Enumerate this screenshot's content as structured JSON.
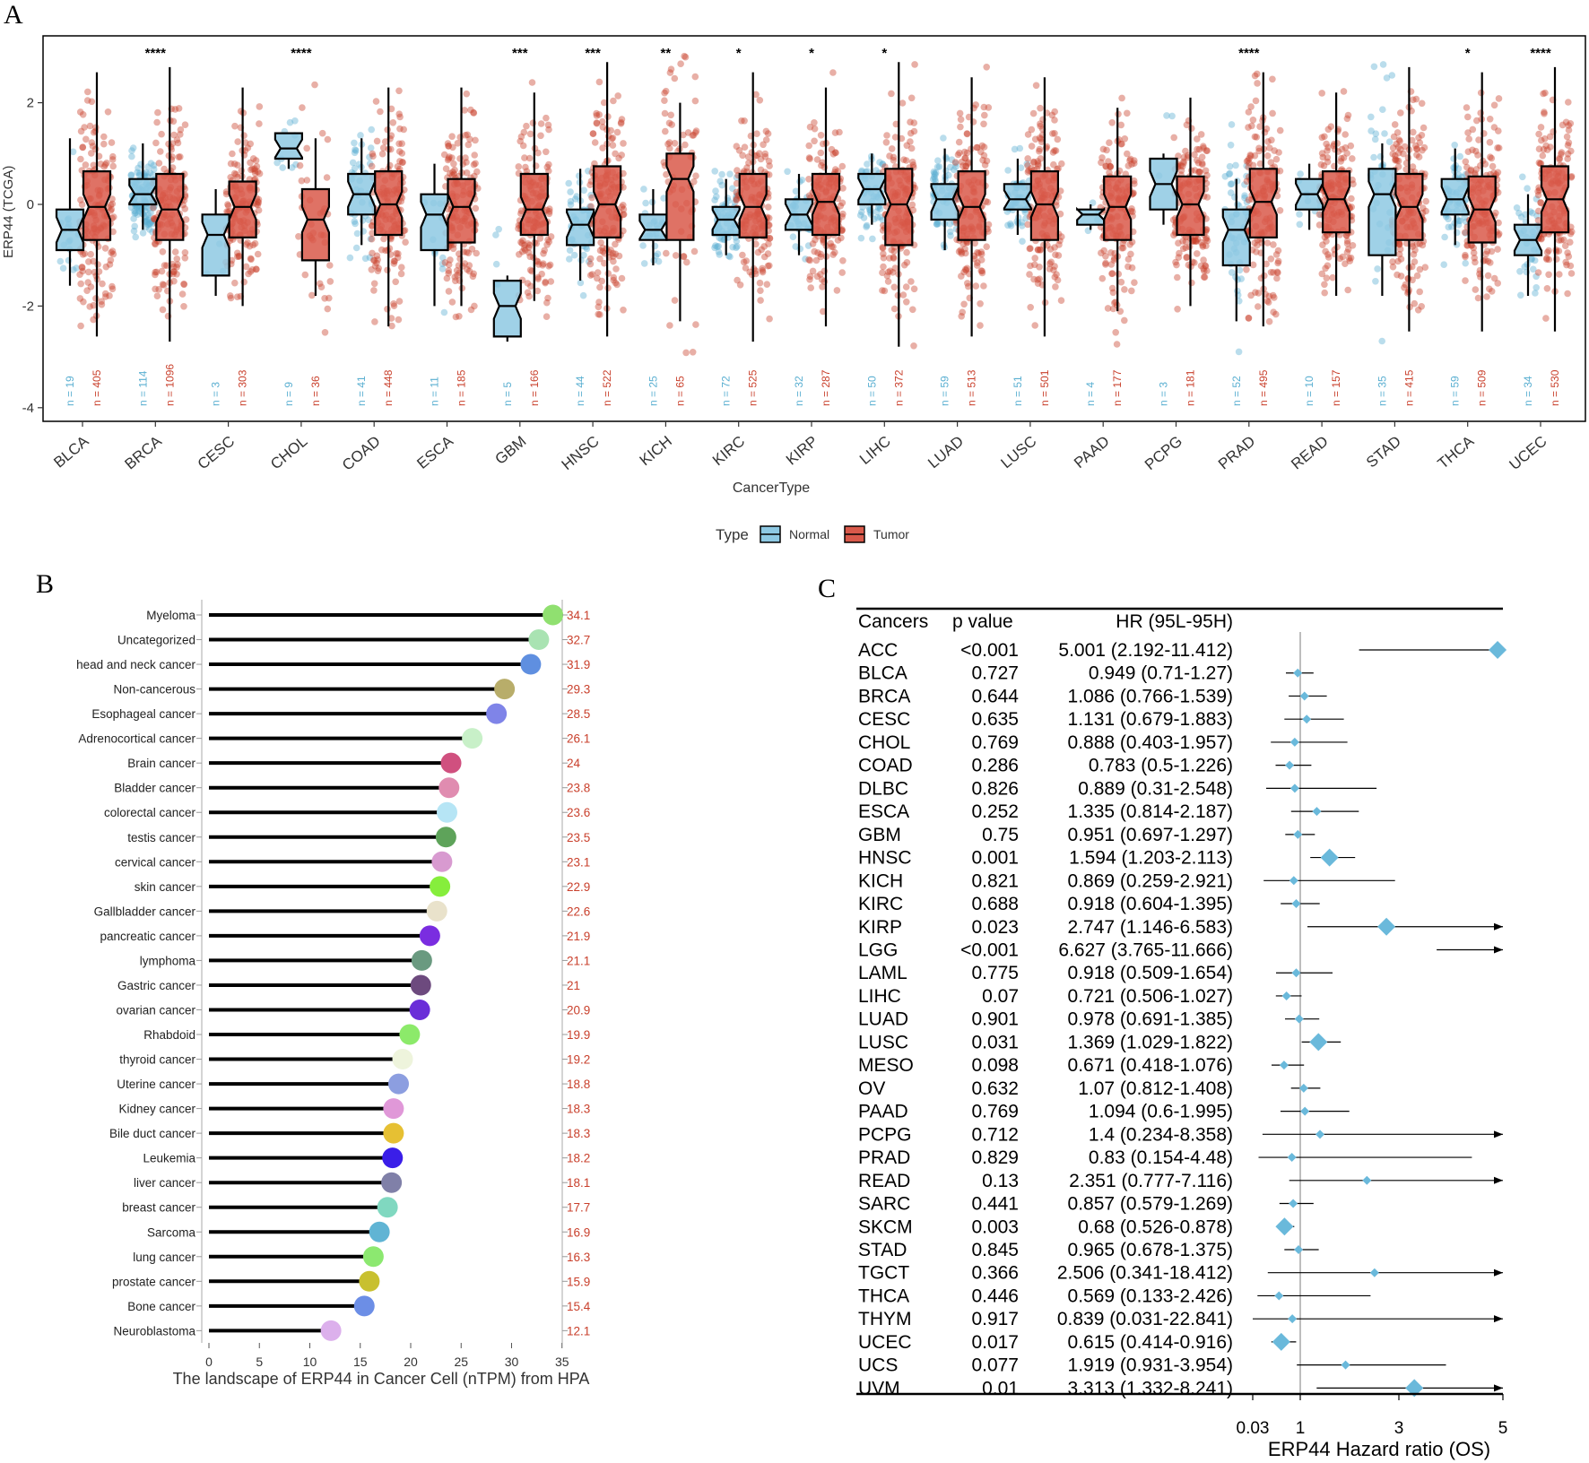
{
  "panels": {
    "a": "A",
    "b": "B",
    "c": "C"
  },
  "colors": {
    "normal": "#5aafd1",
    "tumor": "#c9402c",
    "normal_box": "#8ec9e3",
    "tumor_box": "#d9594a",
    "forest": "#6ab9db",
    "label_red": "#c9402c"
  },
  "chart_data": [
    {
      "id": "A",
      "type": "boxplot",
      "ylabel": "ERP44 (TCGA)",
      "xlabel": "CancerType",
      "ylim": [
        -4.3,
        3.3
      ],
      "yticks": [
        2,
        0,
        -2,
        -4
      ],
      "legend": {
        "title": "Type",
        "entries": [
          "Normal",
          "Tumor"
        ],
        "position": "bottom"
      },
      "categories": [
        "BLCA",
        "BRCA",
        "CESC",
        "CHOL",
        "COAD",
        "ESCA",
        "GBM",
        "HNSC",
        "KICH",
        "KIRC",
        "KIRP",
        "LIHC",
        "LUAD",
        "LUSC",
        "PAAD",
        "PCPG",
        "PRAD",
        "READ",
        "STAD",
        "THCA",
        "UCEC"
      ],
      "significance": [
        "",
        "****",
        "",
        "****",
        "",
        "",
        "***",
        "***",
        "**",
        "*",
        "*",
        "*",
        "",
        "",
        "",
        "",
        "****",
        "",
        "",
        "*",
        "****"
      ],
      "n_normal": [
        "n = 19",
        "n = 114",
        "n = 3",
        "n = 9",
        "n = 41",
        "n = 11",
        "n = 5",
        "n = 44",
        "n = 25",
        "n = 72",
        "n = 32",
        "n = 50",
        "n = 59",
        "n = 51",
        "n = 4",
        "n = 3",
        "n = 52",
        "n = 10",
        "n = 35",
        "n = 59",
        "n = 34"
      ],
      "n_tumor": [
        "n = 405",
        "n = 1096",
        "n = 303",
        "n = 36",
        "n = 448",
        "n = 185",
        "n = 166",
        "n = 522",
        "n = 65",
        "n = 525",
        "n = 287",
        "n = 372",
        "n = 513",
        "n = 501",
        "n = 177",
        "n = 181",
        "n = 495",
        "n = 157",
        "n = 415",
        "n = 509",
        "n = 530"
      ],
      "normal": [
        [
          -0.5,
          -0.9,
          -0.1,
          -1.6,
          1.3
        ],
        [
          0.2,
          0.0,
          0.5,
          -0.5,
          1.2
        ],
        [
          -0.6,
          -1.4,
          -0.2,
          -1.8,
          0.3
        ],
        [
          1.1,
          0.9,
          1.4,
          0.7,
          1.4
        ],
        [
          0.2,
          -0.2,
          0.6,
          -0.8,
          1.3
        ],
        [
          -0.2,
          -0.9,
          0.2,
          -2.0,
          0.8
        ],
        [
          -2.0,
          -2.6,
          -1.5,
          -2.7,
          -1.4
        ],
        [
          -0.4,
          -0.8,
          -0.1,
          -1.5,
          0.7
        ],
        [
          -0.5,
          -0.7,
          -0.2,
          -1.2,
          0.3
        ],
        [
          -0.3,
          -0.6,
          -0.05,
          -1.0,
          0.5
        ],
        [
          -0.2,
          -0.5,
          0.1,
          -1.0,
          0.6
        ],
        [
          0.3,
          0.0,
          0.6,
          -0.4,
          1.0
        ],
        [
          0.1,
          -0.3,
          0.4,
          -0.9,
          1.1
        ],
        [
          0.1,
          -0.1,
          0.4,
          -0.6,
          0.9
        ],
        [
          -0.2,
          -0.4,
          -0.1,
          -0.5,
          0.0
        ],
        [
          0.4,
          -0.1,
          0.9,
          -0.4,
          1.0
        ],
        [
          -0.5,
          -1.2,
          -0.1,
          -2.3,
          0.5
        ],
        [
          0.2,
          -0.1,
          0.5,
          -0.5,
          0.8
        ],
        [
          0.2,
          -1.0,
          0.7,
          -1.8,
          1.2
        ],
        [
          0.1,
          -0.2,
          0.5,
          -0.8,
          1.1
        ],
        [
          -0.7,
          -1.0,
          -0.4,
          -1.8,
          0.2
        ]
      ],
      "tumor": [
        [
          -0.05,
          -0.7,
          0.65,
          -2.6,
          2.6
        ],
        [
          -0.1,
          -0.7,
          0.6,
          -2.7,
          2.7
        ],
        [
          -0.05,
          -0.65,
          0.45,
          -2.0,
          2.3
        ],
        [
          -0.3,
          -1.1,
          0.3,
          -1.8,
          1.3
        ],
        [
          0.0,
          -0.6,
          0.65,
          -2.4,
          2.3
        ],
        [
          -0.05,
          -0.75,
          0.5,
          -2.0,
          2.3
        ],
        [
          -0.1,
          -0.6,
          0.6,
          -1.9,
          2.2
        ],
        [
          0.0,
          -0.65,
          0.75,
          -2.6,
          2.8
        ],
        [
          0.5,
          -0.7,
          1.0,
          -2.3,
          2.0
        ],
        [
          -0.05,
          -0.65,
          0.6,
          -2.7,
          2.6
        ],
        [
          0.05,
          -0.6,
          0.6,
          -2.4,
          2.3
        ],
        [
          0.0,
          -0.8,
          0.7,
          -2.8,
          2.8
        ],
        [
          -0.05,
          -0.7,
          0.65,
          -2.6,
          2.5
        ],
        [
          0.0,
          -0.7,
          0.65,
          -2.6,
          2.5
        ],
        [
          -0.05,
          -0.7,
          0.55,
          -2.1,
          1.9
        ],
        [
          0.0,
          -0.6,
          0.55,
          -2.0,
          2.1
        ],
        [
          0.05,
          -0.65,
          0.7,
          -2.4,
          2.6
        ],
        [
          0.1,
          -0.55,
          0.65,
          -1.8,
          2.2
        ],
        [
          -0.05,
          -0.7,
          0.6,
          -2.5,
          2.7
        ],
        [
          -0.1,
          -0.75,
          0.55,
          -2.5,
          2.6
        ],
        [
          0.1,
          -0.55,
          0.75,
          -2.5,
          2.7
        ]
      ]
    },
    {
      "id": "B",
      "type": "lollipop",
      "xlabel": "The landscape of ERP44 in Cancer Cell (nTPM) from HPA",
      "xlim": [
        0,
        35
      ],
      "xticks": [
        0,
        5,
        10,
        15,
        20,
        25,
        30,
        35
      ],
      "labels": [
        "Myeloma",
        "Uncategorized",
        "head and neck cancer",
        "Non-cancerous",
        "Esophageal cancer",
        "Adrenocortical cancer",
        "Brain cancer",
        "Bladder cancer",
        "colorectal cancer",
        "testis cancer",
        "cervical cancer",
        "skin cancer",
        "Gallbladder cancer",
        "pancreatic cancer",
        "lymphoma",
        "Gastric cancer",
        "ovarian cancer",
        "Rhabdoid",
        "thyroid cancer",
        "Uterine cancer",
        "Kidney cancer",
        "Bile duct cancer",
        "Leukemia",
        "liver cancer",
        "breast cancer",
        "Sarcoma",
        "lung cancer",
        "prostate cancer",
        "Bone cancer",
        "Neuroblastoma"
      ],
      "values": [
        34.1,
        32.7,
        31.9,
        29.3,
        28.5,
        26.1,
        24,
        23.8,
        23.6,
        23.5,
        23.1,
        22.9,
        22.6,
        21.9,
        21.1,
        21,
        20.9,
        19.9,
        19.2,
        18.8,
        18.3,
        18.3,
        18.2,
        18.1,
        17.7,
        16.9,
        16.3,
        15.9,
        15.4,
        12.1
      ],
      "value_labels": [
        "34.1",
        "32.7",
        "31.9",
        "29.3",
        "28.5",
        "26.1",
        "24",
        "23.8",
        "23.6",
        "23.5",
        "23.1",
        "22.9",
        "22.6",
        "21.9",
        "21.1",
        "21",
        "20.9",
        "19.9",
        "19.2",
        "18.8",
        "18.3",
        "18.3",
        "18.2",
        "18.1",
        "17.7",
        "16.9",
        "16.3",
        "15.9",
        "15.4",
        "12.1"
      ],
      "dot_colors": [
        "#90e070",
        "#a9e3b2",
        "#5f8fe0",
        "#b8ad6a",
        "#7f84e8",
        "#c8f0c8",
        "#d0507f",
        "#e08cb0",
        "#b6e5f5",
        "#5ea35a",
        "#d89ad0",
        "#86ee3c",
        "#e9e2cb",
        "#7a2de0",
        "#6a9a80",
        "#6d4a7e",
        "#6a2ed8",
        "#8cea6a",
        "#eef4dc",
        "#8c9ee0",
        "#e098d8",
        "#e6c033",
        "#3a1ee8",
        "#8080a8",
        "#80d8c0",
        "#60b4d4",
        "#8ce870",
        "#c8c030",
        "#6c8ee6",
        "#dcb0ec"
      ]
    },
    {
      "id": "C",
      "type": "forest",
      "headers": [
        "Cancers",
        "p value",
        "HR (95L-95H)"
      ],
      "xlabel": "ERP44 Hazard ratio (OS)",
      "xticks": [
        "0.03",
        "1",
        "3",
        "5"
      ],
      "rows": [
        {
          "c": "ACC",
          "p": "<0.001",
          "hr": "5.001 (2.192-11.412)",
          "v": 5.001,
          "lo": 2.192,
          "hi": 11.412
        },
        {
          "c": "BLCA",
          "p": "0.727",
          "hr": "0.949 (0.71-1.27)",
          "v": 0.949,
          "lo": 0.71,
          "hi": 1.27
        },
        {
          "c": "BRCA",
          "p": "0.644",
          "hr": "1.086 (0.766-1.539)",
          "v": 1.086,
          "lo": 0.766,
          "hi": 1.539
        },
        {
          "c": "CESC",
          "p": "0.635",
          "hr": "1.131 (0.679-1.883)",
          "v": 1.131,
          "lo": 0.679,
          "hi": 1.883
        },
        {
          "c": "CHOL",
          "p": "0.769",
          "hr": "0.888 (0.403-1.957)",
          "v": 0.888,
          "lo": 0.403,
          "hi": 1.957
        },
        {
          "c": "COAD",
          "p": "0.286",
          "hr": "0.783 (0.5-1.226)",
          "v": 0.783,
          "lo": 0.5,
          "hi": 1.226
        },
        {
          "c": "DLBC",
          "p": "0.826",
          "hr": "0.889 (0.31-2.548)",
          "v": 0.889,
          "lo": 0.31,
          "hi": 2.548
        },
        {
          "c": "ESCA",
          "p": "0.252",
          "hr": "1.335 (0.814-2.187)",
          "v": 1.335,
          "lo": 0.814,
          "hi": 2.187
        },
        {
          "c": "GBM",
          "p": "0.75",
          "hr": "0.951 (0.697-1.297)",
          "v": 0.951,
          "lo": 0.697,
          "hi": 1.297
        },
        {
          "c": "HNSC",
          "p": "0.001",
          "hr": "1.594 (1.203-2.113)",
          "v": 1.594,
          "lo": 1.203,
          "hi": 2.113
        },
        {
          "c": "KICH",
          "p": "0.821",
          "hr": "0.869 (0.259-2.921)",
          "v": 0.869,
          "lo": 0.259,
          "hi": 2.921
        },
        {
          "c": "KIRC",
          "p": "0.688",
          "hr": "0.918 (0.604-1.395)",
          "v": 0.918,
          "lo": 0.604,
          "hi": 1.395
        },
        {
          "c": "KIRP",
          "p": "0.023",
          "hr": "2.747 (1.146-6.583)",
          "v": 2.747,
          "lo": 1.146,
          "hi": 6.583
        },
        {
          "c": "LGG",
          "p": "<0.001",
          "hr": "6.627 (3.765-11.666)",
          "v": 6.627,
          "lo": 3.765,
          "hi": 11.666
        },
        {
          "c": "LAML",
          "p": "0.775",
          "hr": "0.918 (0.509-1.654)",
          "v": 0.918,
          "lo": 0.509,
          "hi": 1.654
        },
        {
          "c": "LIHC",
          "p": "0.07",
          "hr": "0.721 (0.506-1.027)",
          "v": 0.721,
          "lo": 0.506,
          "hi": 1.027
        },
        {
          "c": "LUAD",
          "p": "0.901",
          "hr": "0.978 (0.691-1.385)",
          "v": 0.978,
          "lo": 0.691,
          "hi": 1.385
        },
        {
          "c": "LUSC",
          "p": "0.031",
          "hr": "1.369 (1.029-1.822)",
          "v": 1.369,
          "lo": 1.029,
          "hi": 1.822
        },
        {
          "c": "MESO",
          "p": "0.098",
          "hr": "0.671 (0.418-1.076)",
          "v": 0.671,
          "lo": 0.418,
          "hi": 1.076
        },
        {
          "c": "OV",
          "p": "0.632",
          "hr": "1.07 (0.812-1.408)",
          "v": 1.07,
          "lo": 0.812,
          "hi": 1.408
        },
        {
          "c": "PAAD",
          "p": "0.769",
          "hr": "1.094 (0.6-1.995)",
          "v": 1.094,
          "lo": 0.6,
          "hi": 1.995
        },
        {
          "c": "PCPG",
          "p": "0.712",
          "hr": "1.4 (0.234-8.358)",
          "v": 1.4,
          "lo": 0.234,
          "hi": 8.358
        },
        {
          "c": "PRAD",
          "p": "0.829",
          "hr": "0.83 (0.154-4.48)",
          "v": 0.83,
          "lo": 0.154,
          "hi": 4.48
        },
        {
          "c": "READ",
          "p": "0.13",
          "hr": "2.351 (0.777-7.116)",
          "v": 2.351,
          "lo": 0.777,
          "hi": 7.116
        },
        {
          "c": "SARC",
          "p": "0.441",
          "hr": "0.857 (0.579-1.269)",
          "v": 0.857,
          "lo": 0.579,
          "hi": 1.269
        },
        {
          "c": "SKCM",
          "p": "0.003",
          "hr": "0.68 (0.526-0.878)",
          "v": 0.68,
          "lo": 0.526,
          "hi": 0.878
        },
        {
          "c": "STAD",
          "p": "0.845",
          "hr": "0.965 (0.678-1.375)",
          "v": 0.965,
          "lo": 0.678,
          "hi": 1.375
        },
        {
          "c": "TGCT",
          "p": "0.366",
          "hr": "2.506 (0.341-18.412)",
          "v": 2.506,
          "lo": 0.341,
          "hi": 18.412
        },
        {
          "c": "THCA",
          "p": "0.446",
          "hr": "0.569 (0.133-2.426)",
          "v": 0.569,
          "lo": 0.133,
          "hi": 2.426
        },
        {
          "c": "THYM",
          "p": "0.917",
          "hr": "0.839 (0.031-22.841)",
          "v": 0.839,
          "lo": 0.031,
          "hi": 22.841
        },
        {
          "c": "UCEC",
          "p": "0.017",
          "hr": "0.615 (0.414-0.916)",
          "v": 0.615,
          "lo": 0.414,
          "hi": 0.916
        },
        {
          "c": "UCS",
          "p": "0.077",
          "hr": "1.919 (0.931-3.954)",
          "v": 1.919,
          "lo": 0.931,
          "hi": 3.954
        },
        {
          "c": "UVM",
          "p": "0.01",
          "hr": "3.313 (1.332-8.241)",
          "v": 3.313,
          "lo": 1.332,
          "hi": 8.241
        }
      ]
    }
  ]
}
